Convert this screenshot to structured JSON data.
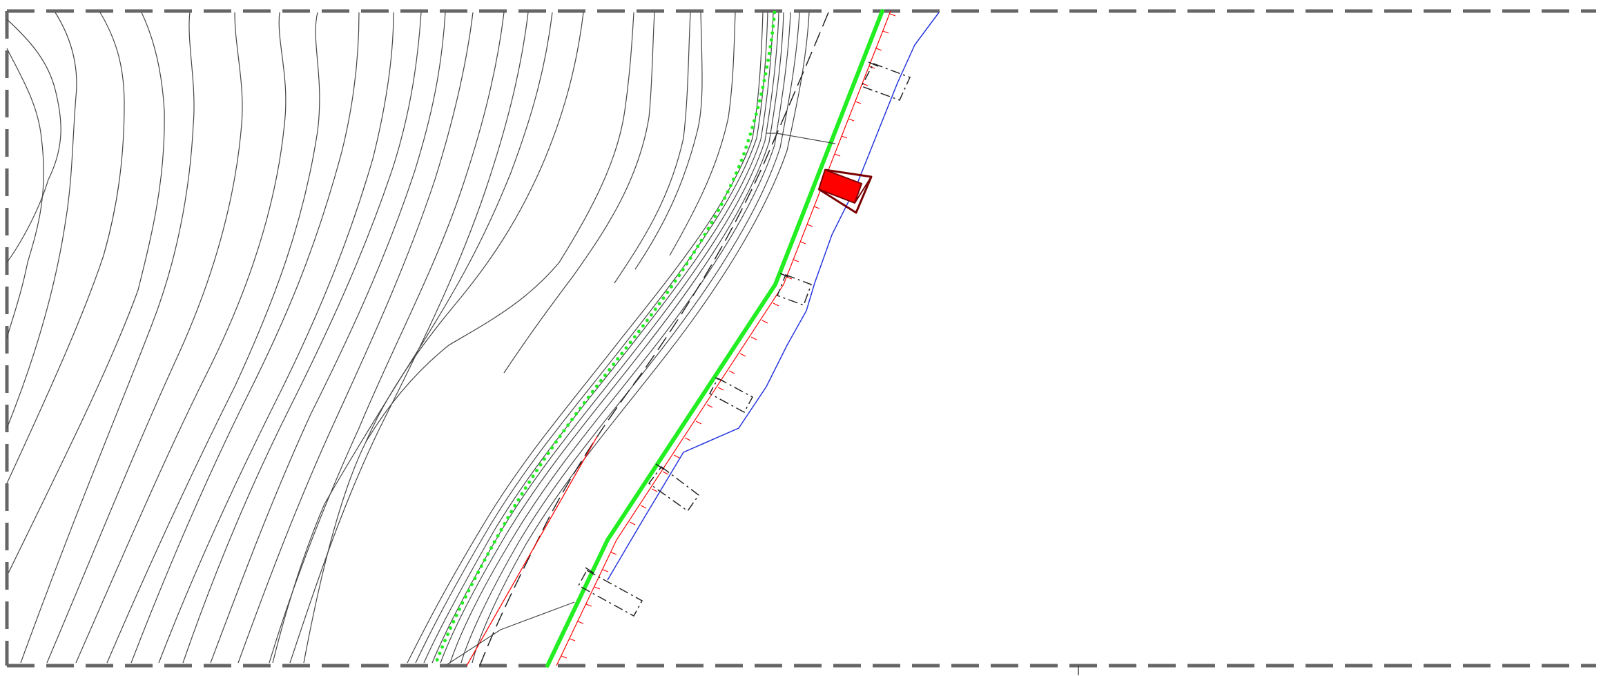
{
  "drawing": {
    "kind": "CAD site plan (contour map with road alignment)",
    "colors": {
      "frame": "#666666",
      "contour": "#444444",
      "edge_of_works": "#22ee22",
      "water_line": "#2233dd",
      "slope_hatch": "#ff0000",
      "structure_fill": "#ff0000",
      "structure_outline": "#7a0000",
      "setback_line": "#222222"
    },
    "layers": [
      "frame-border",
      "terrain-contours",
      "dotted-green-guideline",
      "dashed-offset-line",
      "red-slope-line",
      "green-works-boundary",
      "blue-water-line",
      "slope-hatching",
      "culvert-sections",
      "red-structure",
      "leader-lines"
    ],
    "text_labels": []
  }
}
